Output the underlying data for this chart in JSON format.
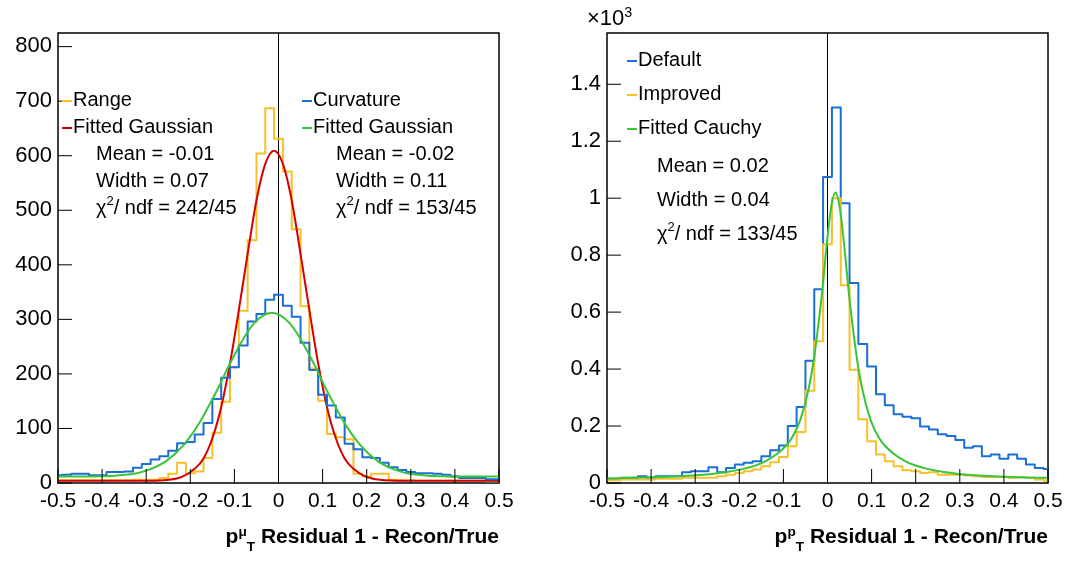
{
  "chart_data": [
    {
      "type": "histogram",
      "xlabel": "p$^{μ}$$_{T}$ Residual 1 - Recon/True",
      "xlim": [
        -0.5,
        0.5
      ],
      "xticks": [
        -0.5,
        -0.4,
        -0.3,
        -0.2,
        -0.1,
        0,
        0.1,
        0.2,
        0.3,
        0.4,
        0.5
      ],
      "ylim": [
        0,
        825
      ],
      "yticks": [
        0,
        100,
        200,
        300,
        400,
        500,
        600,
        700,
        800
      ],
      "legend": "top",
      "grid": false,
      "bins": [
        -0.5,
        -0.49,
        -0.47,
        -0.45,
        -0.43,
        -0.41,
        -0.39,
        -0.37,
        -0.35,
        -0.33,
        -0.31,
        -0.29,
        -0.27,
        -0.25,
        -0.23,
        -0.21,
        -0.19,
        -0.17,
        -0.15,
        -0.13,
        -0.11,
        -0.09,
        -0.07,
        -0.05,
        -0.03,
        -0.01,
        0.01,
        0.03,
        0.05,
        0.07,
        0.09,
        0.11,
        0.13,
        0.15,
        0.17,
        0.19,
        0.21,
        0.23,
        0.25,
        0.27,
        0.29,
        0.31,
        0.33,
        0.35,
        0.37,
        0.39,
        0.41,
        0.43,
        0.45,
        0.47,
        0.49,
        0.5
      ],
      "series": [
        {
          "name": "Range",
          "color": "#f8c02a",
          "values": [
            5,
            5,
            5,
            5,
            5,
            5,
            5,
            5,
            5,
            6,
            6,
            6,
            9,
            17,
            37,
            18,
            21,
            46,
            92,
            149,
            212,
            316,
            445,
            604,
            687,
            631,
            571,
            465,
            324,
            210,
            151,
            90,
            84,
            80,
            17,
            12,
            17,
            17,
            6,
            5,
            5,
            4,
            4,
            4,
            4,
            4,
            4,
            4,
            4,
            3,
            3
          ]
        },
        {
          "name": "Fitted Gaussian",
          "color": "#d40000",
          "type": "line",
          "x": [
            -0.5,
            -0.3,
            -0.26,
            -0.22,
            -0.19,
            -0.17,
            -0.15,
            -0.13,
            -0.11,
            -0.09,
            -0.07,
            -0.05,
            -0.03,
            -0.01,
            0.01,
            0.03,
            0.05,
            0.07,
            0.09,
            0.11,
            0.13,
            0.15,
            0.17,
            0.2,
            0.24,
            0.3,
            0.5
          ],
          "values": [
            4,
            4,
            5,
            11,
            26,
            45,
            82,
            139,
            219,
            317,
            420,
            518,
            585,
            609,
            585,
            518,
            420,
            317,
            219,
            139,
            82,
            45,
            26,
            11,
            5,
            4,
            4
          ]
        },
        {
          "name": "Curvature",
          "color": "#1a6fd6",
          "values": [
            14,
            15,
            17,
            17,
            14,
            14,
            20,
            20,
            21,
            28,
            35,
            43,
            49,
            59,
            73,
            75,
            89,
            110,
            154,
            193,
            212,
            252,
            296,
            310,
            336,
            345,
            325,
            305,
            257,
            207,
            162,
            142,
            120,
            72,
            62,
            47,
            46,
            37,
            29,
            24,
            20,
            18,
            18,
            17,
            15,
            12,
            9,
            9,
            9,
            7,
            7
          ]
        },
        {
          "name": "Fitted Gaussian",
          "color": "#3ac43a",
          "type": "line",
          "x": [
            -0.5,
            -0.42,
            -0.335,
            -0.295,
            -0.255,
            -0.215,
            -0.195,
            -0.175,
            -0.155,
            -0.135,
            -0.115,
            -0.095,
            -0.075,
            -0.055,
            -0.035,
            -0.015,
            0.005,
            0.025,
            0.045,
            0.065,
            0.085,
            0.105,
            0.125,
            0.145,
            0.165,
            0.185,
            0.225,
            0.265,
            0.305,
            0.385,
            0.5
          ],
          "values": [
            12,
            12,
            16,
            24,
            40,
            70,
            91,
            116,
            146,
            177,
            211,
            242,
            271,
            293,
            307,
            312,
            307,
            293,
            271,
            242,
            211,
            177,
            146,
            116,
            91,
            70,
            40,
            24,
            16,
            12,
            12
          ]
        }
      ],
      "annotations": [
        "Mean = -0.01",
        "Width = 0.07",
        "χ$^{2}$/ ndf = 242/45",
        "Mean = -0.02",
        "Width = 0.11",
        "χ$^{2}$/ ndf = 153/45"
      ],
      "ref_lines": [
        {
          "axis": "x",
          "value": 0,
          "color": "#000000"
        }
      ]
    },
    {
      "type": "histogram",
      "xlabel": "p$^{p}$$_{T}$ Residual 1 - Recon/True",
      "ylabel": "×10$^{3}$",
      "xlim": [
        -0.5,
        0.5
      ],
      "xticks": [
        -0.5,
        -0.4,
        -0.3,
        -0.2,
        -0.1,
        0,
        0.1,
        0.2,
        0.3,
        0.4,
        0.5
      ],
      "ylim": [
        0,
        1.58
      ],
      "yticks": [
        0,
        0.2,
        0.4,
        0.6,
        0.8,
        1,
        1.2,
        1.4
      ],
      "legend": "top left",
      "grid": false,
      "bins": [
        -0.5,
        -0.49,
        -0.47,
        -0.45,
        -0.43,
        -0.41,
        -0.39,
        -0.37,
        -0.35,
        -0.33,
        -0.31,
        -0.29,
        -0.27,
        -0.25,
        -0.23,
        -0.21,
        -0.19,
        -0.17,
        -0.15,
        -0.13,
        -0.11,
        -0.09,
        -0.07,
        -0.05,
        -0.03,
        -0.01,
        0.01,
        0.03,
        0.05,
        0.07,
        0.09,
        0.11,
        0.13,
        0.15,
        0.17,
        0.19,
        0.21,
        0.23,
        0.25,
        0.27,
        0.29,
        0.31,
        0.33,
        0.35,
        0.37,
        0.39,
        0.41,
        0.43,
        0.45,
        0.47,
        0.49,
        0.5
      ],
      "series": [
        {
          "name": "Default",
          "color": "#1a6fd6",
          "values": [
            0.014,
            0.014,
            0.018,
            0.018,
            0.024,
            0.018,
            0.024,
            0.024,
            0.024,
            0.038,
            0.041,
            0.041,
            0.055,
            0.038,
            0.053,
            0.065,
            0.071,
            0.076,
            0.094,
            0.115,
            0.132,
            0.2,
            0.267,
            0.429,
            0.68,
            1.074,
            1.318,
            0.982,
            0.702,
            0.488,
            0.409,
            0.312,
            0.273,
            0.241,
            0.233,
            0.227,
            0.198,
            0.188,
            0.171,
            0.165,
            0.151,
            0.124,
            0.129,
            0.094,
            0.1,
            0.085,
            0.1,
            0.085,
            0.065,
            0.053,
            0.049
          ]
        },
        {
          "name": "Improved",
          "color": "#f8c02a",
          "values": [
            0.01,
            0.01,
            0.012,
            0.012,
            0.012,
            0.012,
            0.015,
            0.015,
            0.015,
            0.018,
            0.018,
            0.018,
            0.018,
            0.024,
            0.029,
            0.035,
            0.041,
            0.047,
            0.059,
            0.073,
            0.091,
            0.129,
            0.179,
            0.324,
            0.498,
            0.838,
            1.0,
            0.694,
            0.398,
            0.224,
            0.147,
            0.1,
            0.076,
            0.059,
            0.045,
            0.041,
            0.035,
            0.038,
            0.029,
            0.029,
            0.029,
            0.026,
            0.024,
            0.021,
            0.021,
            0.021,
            0.018,
            0.021,
            0.018,
            0.012,
            0.009
          ]
        },
        {
          "name": "Fitted Cauchy",
          "color": "#3ac43a",
          "type": "line",
          "x": [
            -0.5,
            -0.482,
            -0.382,
            -0.282,
            -0.232,
            -0.182,
            -0.142,
            -0.112,
            -0.082,
            -0.062,
            -0.042,
            -0.032,
            -0.022,
            -0.012,
            -0.002,
            0.008,
            0.018,
            0.028,
            0.038,
            0.048,
            0.058,
            0.068,
            0.078,
            0.098,
            0.118,
            0.148,
            0.178,
            0.218,
            0.268,
            0.318,
            0.418,
            0.5
          ],
          "values": [
            0.017,
            0.017,
            0.021,
            0.029,
            0.038,
            0.053,
            0.075,
            0.105,
            0.155,
            0.22,
            0.336,
            0.423,
            0.539,
            0.673,
            0.833,
            0.965,
            1.02,
            0.965,
            0.833,
            0.673,
            0.539,
            0.423,
            0.336,
            0.22,
            0.155,
            0.105,
            0.075,
            0.053,
            0.038,
            0.029,
            0.021,
            0.018
          ]
        }
      ],
      "annotations": [
        "Mean = 0.02",
        "Width = 0.04",
        "χ$^{2}$/ ndf = 133/45"
      ],
      "ref_lines": [
        {
          "axis": "x",
          "value": 0,
          "color": "#000000"
        }
      ]
    }
  ]
}
